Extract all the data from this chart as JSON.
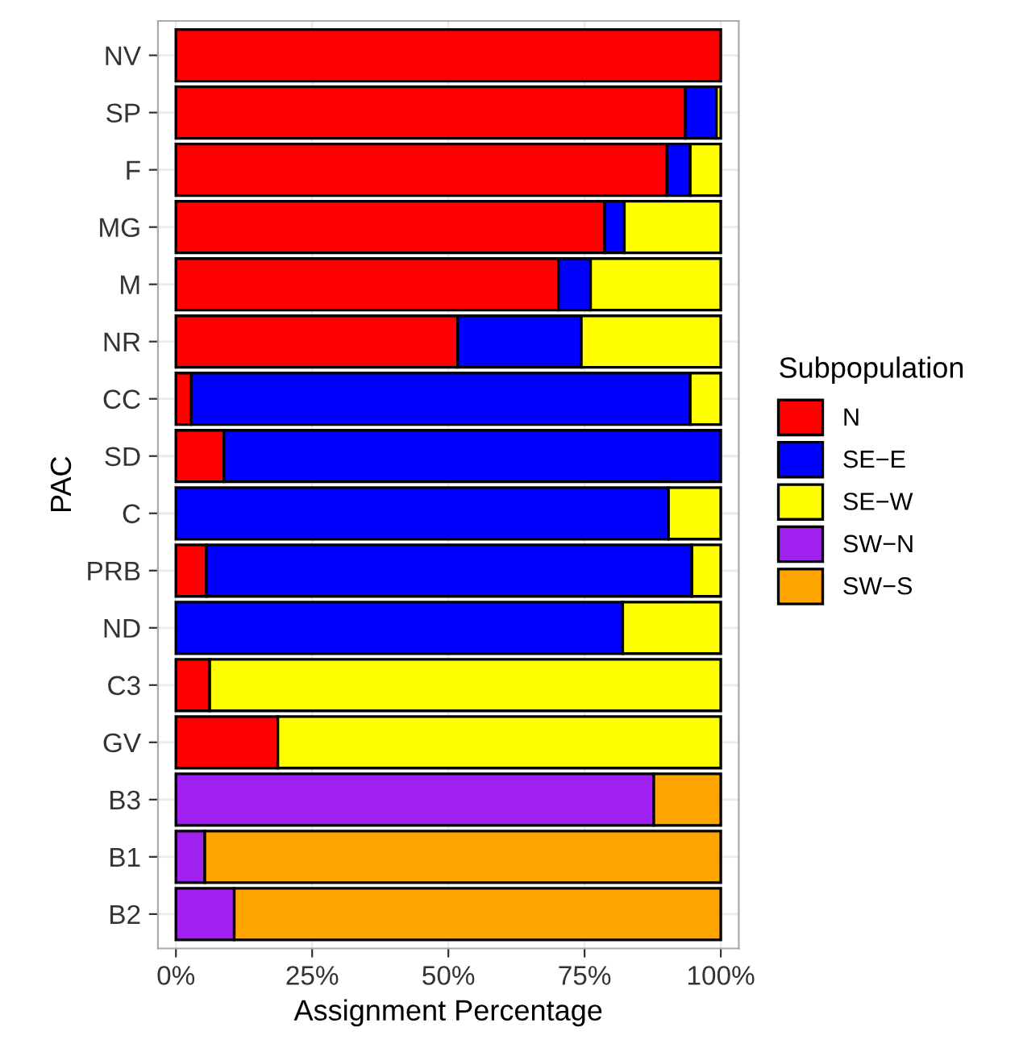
{
  "chart_data": {
    "type": "bar",
    "orientation": "horizontal",
    "stacked": true,
    "xlabel": "Assignment Percentage",
    "ylabel": "PAC",
    "legend_title": "Subpopulation",
    "legend": "right",
    "grid": true,
    "categories": [
      "NV",
      "SP",
      "F",
      "MG",
      "M",
      "NR",
      "CC",
      "SD",
      "C",
      "PRB",
      "ND",
      "C3",
      "GV",
      "B3",
      "B1",
      "B2"
    ],
    "xlim": [
      -3.3,
      103.3
    ],
    "xticks": [
      {
        "value": 0,
        "label": "0%"
      },
      {
        "value": 25,
        "label": "25%"
      },
      {
        "value": 50,
        "label": "50%"
      },
      {
        "value": 75,
        "label": "75%"
      },
      {
        "value": 100,
        "label": "100%"
      }
    ],
    "series": [
      {
        "name": "N",
        "color": "#ff0000",
        "values": [
          100,
          93.5,
          90.1,
          78.7,
          70.2,
          51.7,
          2.8,
          8.8,
          null,
          5.6,
          null,
          6.2,
          18.7,
          null,
          null,
          null
        ]
      },
      {
        "name": "SE−E",
        "color": "#0000ff",
        "values": [
          null,
          5.7,
          4.3,
          3.6,
          5.9,
          22.7,
          91.6,
          91.2,
          90.4,
          89.1,
          82.0,
          null,
          null,
          null,
          null,
          null
        ]
      },
      {
        "name": "SE−W",
        "color": "#ffff00",
        "values": [
          null,
          0.8,
          5.6,
          17.7,
          23.9,
          25.6,
          5.6,
          null,
          9.6,
          5.3,
          18.0,
          93.8,
          81.3,
          null,
          null,
          null
        ]
      },
      {
        "name": "SW−N",
        "color": "#a020f0",
        "values": [
          null,
          null,
          null,
          null,
          null,
          null,
          null,
          null,
          null,
          null,
          null,
          null,
          null,
          87.7,
          5.3,
          10.7
        ]
      },
      {
        "name": "SW−S",
        "color": "#ffa500",
        "values": [
          null,
          null,
          null,
          null,
          null,
          null,
          null,
          null,
          null,
          null,
          null,
          null,
          null,
          12.3,
          94.7,
          89.3
        ]
      }
    ]
  }
}
